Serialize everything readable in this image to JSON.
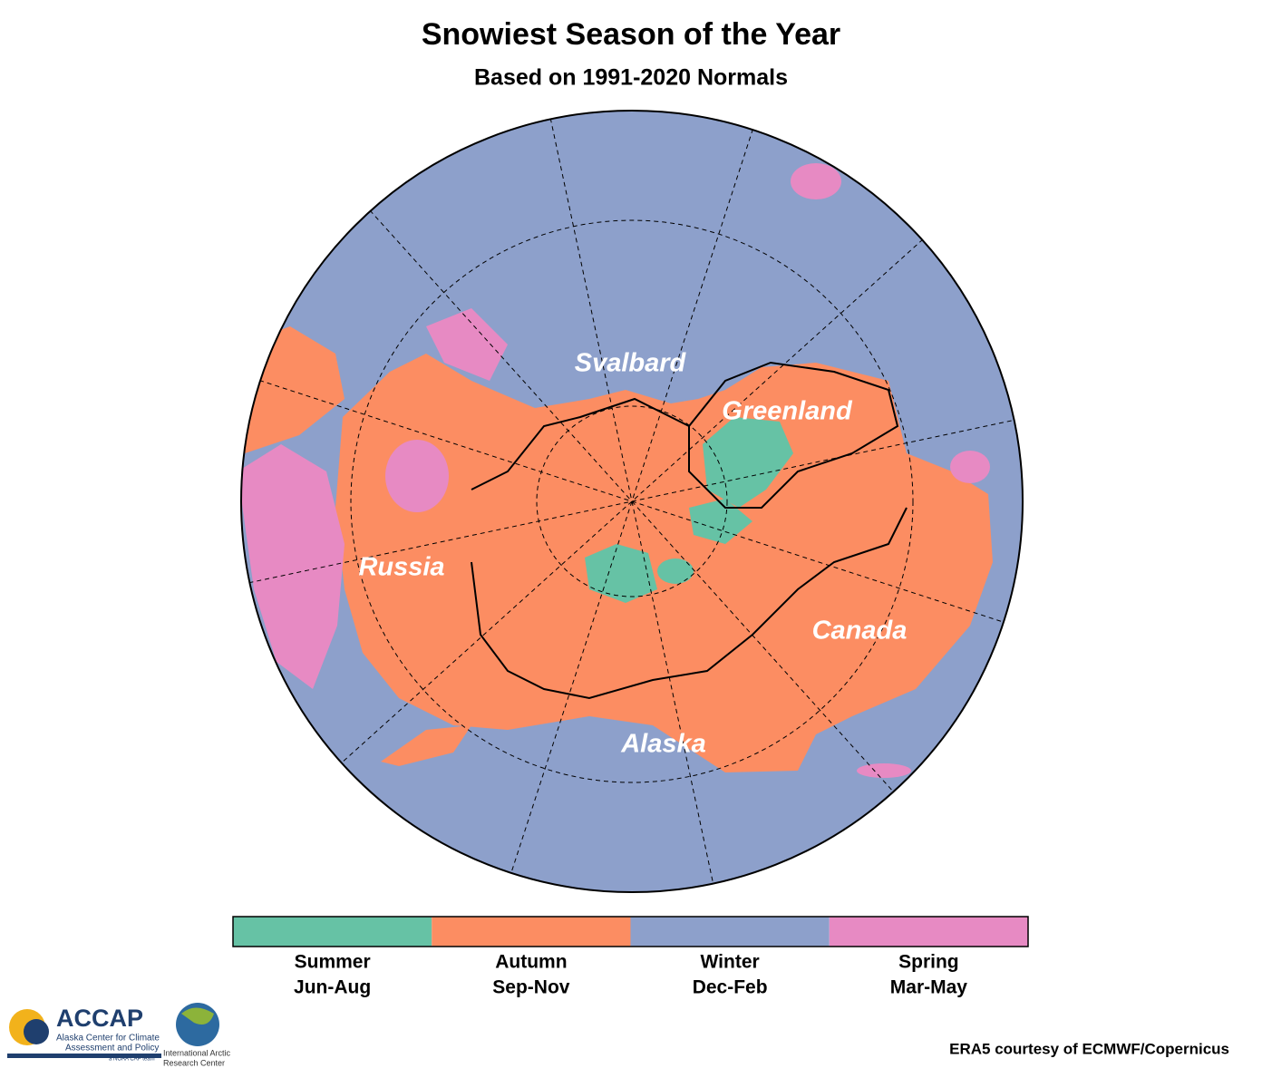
{
  "header": {
    "title": "Snowiest Season of the Year",
    "subtitle": "Based on 1991-2020 Normals"
  },
  "map": {
    "labels": [
      "Svalbard",
      "Greenland",
      "Russia",
      "Canada",
      "Alaska"
    ]
  },
  "legend": {
    "items": [
      {
        "name": "Summer",
        "months": "Jun-Aug",
        "color": "#66c2a5"
      },
      {
        "name": "Autumn",
        "months": "Sep-Nov",
        "color": "#fc8d62"
      },
      {
        "name": "Winter",
        "months": "Dec-Feb",
        "color": "#8da0cb"
      },
      {
        "name": "Spring",
        "months": "Mar-May",
        "color": "#e78ac3"
      }
    ]
  },
  "logos": {
    "accap": "ACCAP",
    "accap_full_1": "Alaska Center for Climate",
    "accap_full_2": "Assessment and Policy",
    "accap_team": "a NOAA CAP team",
    "iarc_1": "International Arctic",
    "iarc_2": "Research Center"
  },
  "credit": "ERA5 courtesy of ECMWF/Copernicus"
}
